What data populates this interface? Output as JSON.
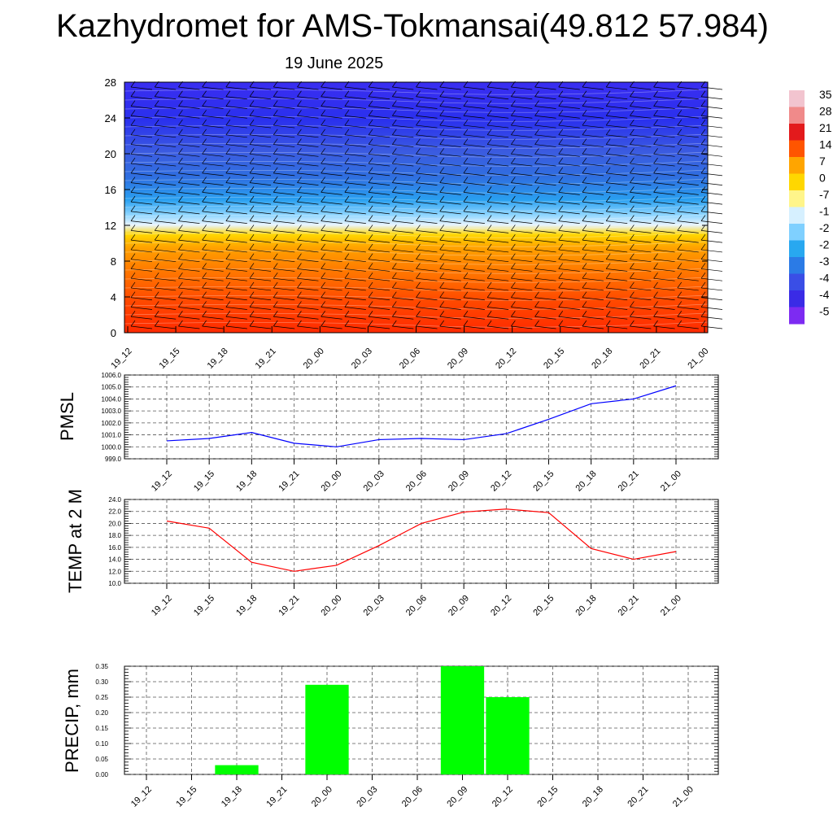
{
  "title": "Kazhydromet for AMS-Tokmansai(49.812 57.984)",
  "subtitle": "19 June 2025",
  "colors": {
    "pmsl_line": "#0000ff",
    "temp_line": "#ff0000",
    "precip_bar": "#00ff00",
    "wind_barb": "#000000"
  },
  "chart_data": [
    {
      "type": "heatmap",
      "title": "",
      "categories": [
        "19_12",
        "19_15",
        "19_18",
        "19_21",
        "20_00",
        "20_03",
        "20_06",
        "20_09",
        "20_12",
        "20_15",
        "20_18",
        "20_21",
        "21_00"
      ],
      "y_ticks": [
        "0",
        "4",
        "8",
        "12",
        "16",
        "20",
        "24",
        "28"
      ],
      "ylim": [
        0,
        28
      ],
      "colorbar_labels": [
        "35",
        "28",
        "21",
        "14",
        "7",
        "0",
        "-7",
        "-1",
        "-2",
        "-2",
        "-3",
        "-4",
        "-4",
        "-5"
      ],
      "colorbar_colors": [
        "#f2c4cf",
        "#f08a8a",
        "#e31a1c",
        "#ff5500",
        "#ffa500",
        "#ffd700",
        "#fff58a",
        "#d6f0ff",
        "#7fd0ff",
        "#28a8f0",
        "#2b7be6",
        "#3a4ee6",
        "#3a2be6",
        "#7d2bf2"
      ],
      "description_bands": [
        "warm (red/orange) below 11",
        "cyan/white transition 11-16",
        "blue/purple above 16"
      ]
    },
    {
      "type": "line",
      "ylabel": "PMSL",
      "categories": [
        "19_12",
        "19_15",
        "19_18",
        "19_21",
        "20_00",
        "20_03",
        "20_06",
        "20_09",
        "20_12",
        "20_15",
        "20_18",
        "20_21",
        "21_00"
      ],
      "values": [
        1000.5,
        1000.7,
        1001.2,
        1000.3,
        1000.0,
        1000.6,
        1000.7,
        1000.6,
        1001.1,
        1002.3,
        1003.6,
        1004.0,
        1005.1
      ],
      "y_ticks": [
        "999.0",
        "1000.0",
        "1001.0",
        "1002.0",
        "1003.0",
        "1004.0",
        "1005.0",
        "1006.0"
      ],
      "ylim": [
        999.0,
        1006.0
      ],
      "grid": true
    },
    {
      "type": "line",
      "ylabel": "TEMP at 2 M",
      "categories": [
        "19_12",
        "19_15",
        "19_18",
        "19_21",
        "20_00",
        "20_03",
        "20_06",
        "20_09",
        "20_12",
        "20_15",
        "20_18",
        "20_21",
        "21_00"
      ],
      "values": [
        20.4,
        19.2,
        13.5,
        12.0,
        13.0,
        16.3,
        20.0,
        21.9,
        22.4,
        21.8,
        15.8,
        14.0,
        15.3
      ],
      "y_ticks": [
        "10.0",
        "12.0",
        "14.0",
        "16.0",
        "18.0",
        "20.0",
        "22.0",
        "24.0"
      ],
      "ylim": [
        10.0,
        24.0
      ],
      "grid": true
    },
    {
      "type": "bar",
      "ylabel": "PRECIP, mm",
      "categories": [
        "19_12",
        "19_15",
        "19_18",
        "19_21",
        "20_00",
        "20_03",
        "20_06",
        "20_09",
        "20_12",
        "20_15",
        "20_18",
        "20_21",
        "21_00"
      ],
      "values": [
        0,
        0,
        0.03,
        0,
        0.29,
        0,
        0,
        0.35,
        0.25,
        0,
        0,
        0,
        0
      ],
      "y_ticks": [
        "0.00",
        "0.05",
        "0.10",
        "0.15",
        "0.20",
        "0.25",
        "0.30",
        "0.35"
      ],
      "ylim": [
        0,
        0.35
      ],
      "grid": true
    }
  ]
}
